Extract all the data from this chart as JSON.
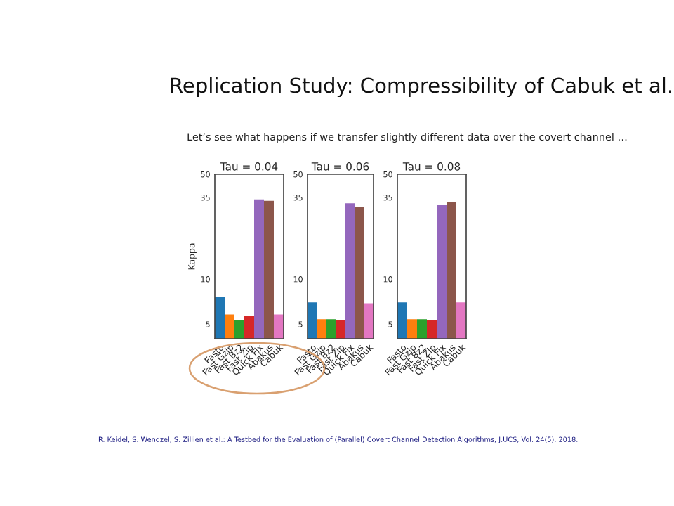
{
  "chart_data": [
    {
      "type": "bar",
      "title": "Tau = 0.04",
      "ylabel": "Kappa",
      "log": "y",
      "annotations": [
        "Replication Study: Compressibility of Cabuk et al.",
        "Let’s see what happens if we transfer slightly different data over the covert channel …",
        "R. Keidel, S. Wendzel, S. Zillien et al.: A Testbed for the Evaluation of (Parallel) Covert Channel Detection Algorithms, J.UCS, Vol. 24(5), 2018."
      ],
      "categories": [
        "Fasto",
        "Fast Gzip",
        "Fast Bz2",
        "Fast Zip",
        "Quick Fix",
        "Abakus",
        "Cabuk"
      ],
      "values": [
        7.6,
        5.8,
        5.3,
        5.7,
        34,
        33.3,
        5.8
      ],
      "colors": [
        "#1f77b4",
        "#ff7f0e",
        "#2ca02c",
        "#d62728",
        "#9467bd",
        "#8c564b",
        "#e377c2"
      ],
      "ylim": [
        4,
        50
      ],
      "yticks": [
        5,
        10,
        35,
        50
      ]
    },
    {
      "type": "bar",
      "title": "Tau = 0.06",
      "log": "y",
      "categories": [
        "Fasto",
        "Fast Gzip",
        "Fast Bz2",
        "Fast Zip",
        "Quick Fix",
        "Abakus",
        "Cabuk"
      ],
      "values": [
        7.0,
        5.4,
        5.4,
        5.3,
        32,
        30.3,
        6.9
      ],
      "colors": [
        "#1f77b4",
        "#ff7f0e",
        "#2ca02c",
        "#d62728",
        "#9467bd",
        "#8c564b",
        "#e377c2"
      ],
      "ylim": [
        4,
        50
      ],
      "yticks": [
        5,
        10,
        35,
        50
      ]
    },
    {
      "type": "bar",
      "title": "Tau = 0.08",
      "log": "y",
      "categories": [
        "Fasto",
        "Fast Gzip",
        "Fast Bz2",
        "Fast Zip",
        "Quick Fix",
        "Abakus",
        "Cabuk"
      ],
      "values": [
        7.0,
        5.4,
        5.4,
        5.3,
        31.2,
        32.6,
        7.0
      ],
      "colors": [
        "#1f77b4",
        "#ff7f0e",
        "#2ca02c",
        "#d62728",
        "#9467bd",
        "#8c564b",
        "#e377c2"
      ],
      "ylim": [
        4,
        50
      ],
      "yticks": [
        5,
        10,
        35,
        50
      ]
    }
  ]
}
